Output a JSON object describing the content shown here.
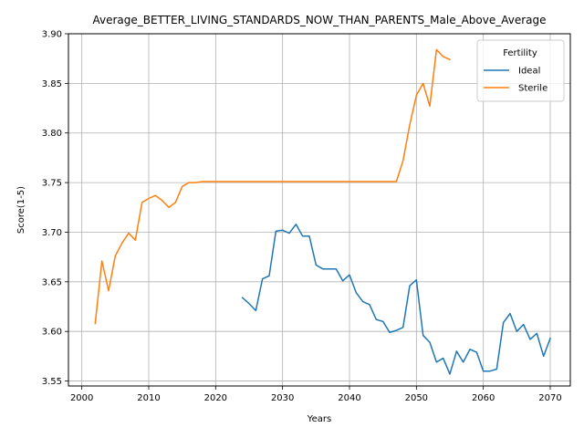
{
  "chart_data": {
    "type": "line",
    "title": "Average_BETTER_LIVING_STANDARDS_NOW_THAN_PARENTS_Male_Above_Average",
    "xlabel": "Years",
    "ylabel": "Score(1-5)",
    "xlim": [
      1998,
      2073
    ],
    "ylim": [
      3.545,
      3.9
    ],
    "xticks": [
      2000,
      2010,
      2020,
      2030,
      2040,
      2050,
      2060,
      2070
    ],
    "yticks": [
      3.55,
      3.6,
      3.65,
      3.7,
      3.75,
      3.8,
      3.85,
      3.9
    ],
    "xtick_labels": [
      "2000",
      "2010",
      "2020",
      "2030",
      "2040",
      "2050",
      "2060",
      "2070"
    ],
    "ytick_labels": [
      "3.55",
      "3.60",
      "3.65",
      "3.70",
      "3.75",
      "3.80",
      "3.85",
      "3.90"
    ],
    "grid": true,
    "legend": {
      "title": "Fertility",
      "placement": "top-right"
    },
    "series": [
      {
        "name": "Ideal",
        "color": "#1f77b4",
        "x": [
          2024,
          2025,
          2026,
          2027,
          2028,
          2029,
          2030,
          2031,
          2032,
          2033,
          2034,
          2035,
          2036,
          2037,
          2038,
          2039,
          2040,
          2041,
          2042,
          2043,
          2044,
          2045,
          2046,
          2047,
          2048,
          2049,
          2050,
          2051,
          2052,
          2053,
          2054,
          2055,
          2056,
          2057,
          2058,
          2059,
          2060,
          2061,
          2062,
          2063,
          2064,
          2065,
          2066,
          2067,
          2068,
          2069,
          2070
        ],
        "y": [
          3.634,
          3.628,
          3.621,
          3.653,
          3.656,
          3.701,
          3.702,
          3.699,
          3.708,
          3.696,
          3.696,
          3.667,
          3.663,
          3.663,
          3.663,
          3.651,
          3.657,
          3.639,
          3.63,
          3.627,
          3.612,
          3.61,
          3.599,
          3.601,
          3.604,
          3.646,
          3.652,
          3.596,
          3.589,
          3.569,
          3.573,
          3.557,
          3.58,
          3.569,
          3.582,
          3.579,
          3.56,
          3.56,
          3.562,
          3.609,
          3.618,
          3.6,
          3.607,
          3.592,
          3.598,
          3.575,
          3.593
        ]
      },
      {
        "name": "Sterile",
        "color": "#ff7f0e",
        "x": [
          2002,
          2003,
          2004,
          2005,
          2006,
          2007,
          2008,
          2009,
          2010,
          2011,
          2012,
          2013,
          2014,
          2015,
          2016,
          2017,
          2018,
          2019,
          2020,
          2021,
          2022,
          2023,
          2024,
          2025,
          2026,
          2027,
          2028,
          2029,
          2030,
          2031,
          2032,
          2033,
          2034,
          2035,
          2036,
          2037,
          2038,
          2039,
          2040,
          2041,
          2042,
          2043,
          2044,
          2045,
          2046,
          2047,
          2048,
          2049,
          2050,
          2051,
          2052,
          2053,
          2054,
          2055
        ],
        "y": [
          3.608,
          3.671,
          3.641,
          3.676,
          3.689,
          3.699,
          3.692,
          3.73,
          3.734,
          3.737,
          3.732,
          3.725,
          3.73,
          3.746,
          3.75,
          3.75,
          3.751,
          3.751,
          3.751,
          3.751,
          3.751,
          3.751,
          3.751,
          3.751,
          3.751,
          3.751,
          3.751,
          3.751,
          3.751,
          3.751,
          3.751,
          3.751,
          3.751,
          3.751,
          3.751,
          3.751,
          3.751,
          3.751,
          3.751,
          3.751,
          3.751,
          3.751,
          3.751,
          3.751,
          3.751,
          3.751,
          3.772,
          3.808,
          3.838,
          3.85,
          3.827,
          3.884,
          3.877,
          3.874
        ]
      }
    ]
  }
}
